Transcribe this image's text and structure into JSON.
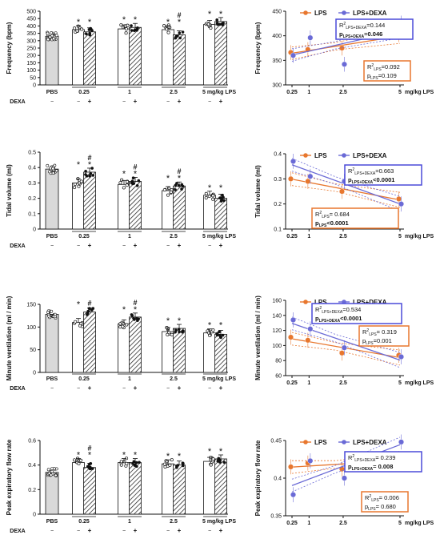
{
  "doses": [
    "0.25",
    "1",
    "2.5",
    "5"
  ],
  "row_labels": {
    "pbs": "PBS",
    "dexa": "DEXA",
    "minus": "−",
    "plus": "+",
    "unit_last": "5 mg/kg LPS",
    "unit_right": "mg/kg LPS"
  },
  "colors": {
    "lps": "#e8772e",
    "lpsdexa": "#6a6ad6",
    "pbs_bar": "#d9d9d9",
    "box_blue": "#4a4ad8",
    "box_orange": "#e8772e"
  },
  "chart_data": [
    {
      "type": "bar",
      "ylabel": "Frequency (bpm)",
      "ylim": [
        0,
        500
      ],
      "yticks": [
        0,
        50,
        100,
        150,
        200,
        250,
        300,
        350,
        400,
        450,
        500
      ],
      "pbs": 330,
      "lps": [
        375,
        380,
        375,
        410
      ],
      "lpsdexa": [
        360,
        390,
        340,
        430
      ],
      "marks_lps": [
        "*",
        "*",
        "*",
        "*"
      ],
      "marks_dexa": [
        "*",
        "*",
        "*#",
        "*"
      ]
    },
    {
      "type": "line",
      "ylabel": "Frequency (bpm)",
      "ylim": [
        300,
        450
      ],
      "yticks": [
        300,
        350,
        400,
        450
      ],
      "xticks": [
        "0.25",
        "1",
        "2.5",
        "5"
      ],
      "legend": [
        "LPS",
        "LPS+DEXA"
      ],
      "series": [
        {
          "name": "LPS",
          "x": [
            0.25,
            1,
            2.5,
            5
          ],
          "y": [
            366,
            372,
            375,
            402
          ]
        },
        {
          "name": "LPS+DEXA",
          "x": [
            0.25,
            1,
            2.5,
            5
          ],
          "y": [
            360,
            396,
            342,
            426
          ]
        }
      ],
      "stats_blue": {
        "r2_prefix": "R",
        "r2_sub": "LPS+DEXA",
        "r2_val": "=0.144",
        "p_prefix": "p",
        "p_sub": "LPS+DEXA",
        "p_val": "=0.046"
      },
      "stats_orange": {
        "r2_prefix": "R",
        "r2_sub": "LPS",
        "r2_val": "=0.092",
        "p_prefix": "p",
        "p_sub": "LPS",
        "p_val": "=0.109"
      }
    },
    {
      "type": "bar",
      "ylabel": "Tidal volume (ml)",
      "ylim": [
        0,
        0.5
      ],
      "yticks": [
        0,
        0.1,
        0.2,
        0.3,
        0.4,
        0.5
      ],
      "pbs": 0.39,
      "lps": [
        0.3,
        0.29,
        0.25,
        0.22
      ],
      "lpsdexa": [
        0.37,
        0.31,
        0.28,
        0.2
      ],
      "marks_lps": [
        "*",
        "*",
        "*",
        "*"
      ],
      "marks_dexa": [
        "*#",
        "*#",
        "*#",
        "*"
      ]
    },
    {
      "type": "line",
      "ylabel": "Tidal volume (ml)",
      "ylim": [
        0.1,
        0.4
      ],
      "yticks": [
        0.1,
        0.2,
        0.3,
        0.4
      ],
      "xticks": [
        "0.25",
        "1",
        "2.5",
        "5"
      ],
      "legend": [
        "LPS",
        "LPS+DEXA"
      ],
      "series": [
        {
          "name": "LPS",
          "x": [
            0.25,
            1,
            2.5,
            5
          ],
          "y": [
            0.3,
            0.29,
            0.25,
            0.22
          ]
        },
        {
          "name": "LPS+DEXA",
          "x": [
            0.25,
            1,
            2.5,
            5
          ],
          "y": [
            0.37,
            0.31,
            0.29,
            0.2
          ]
        }
      ],
      "stats_blue": {
        "r2_prefix": "R",
        "r2_sub": "LPS+DEXA",
        "r2_val": "=0.663",
        "p_prefix": "p",
        "p_sub": "LPS+DEXA",
        "p_val": "<0.0001"
      },
      "stats_orange": {
        "r2_prefix": "R",
        "r2_sub": "LPS",
        "r2_val": "= 0.684",
        "p_prefix": "p",
        "p_sub": "LPS",
        "p_val": "<0.0001"
      }
    },
    {
      "type": "bar",
      "ylabel": "Minute ventilation (ml / min)",
      "ylim": [
        0,
        150
      ],
      "yticks": [
        0,
        50,
        100,
        150
      ],
      "pbs": 128,
      "lps": [
        110,
        107,
        90,
        87
      ],
      "lpsdexa": [
        133,
        122,
        97,
        84
      ],
      "marks_lps": [
        "*",
        "*",
        "*",
        "*"
      ],
      "marks_dexa": [
        "#",
        "*#",
        "*",
        "*"
      ]
    },
    {
      "type": "line",
      "ylabel": "Minute ventilation (ml / min)",
      "ylim": [
        60,
        160
      ],
      "yticks": [
        60,
        80,
        100,
        120,
        140,
        160
      ],
      "xticks": [
        "0.25",
        "1",
        "2.5",
        "5"
      ],
      "legend": [
        "LPS",
        "LPS+DEXA"
      ],
      "series": [
        {
          "name": "LPS",
          "x": [
            0.25,
            1,
            2.5,
            5
          ],
          "y": [
            111,
            107,
            90,
            87
          ]
        },
        {
          "name": "LPS+DEXA",
          "x": [
            0.25,
            1,
            2.5,
            5
          ],
          "y": [
            134,
            122,
            97,
            85
          ]
        }
      ],
      "stats_blue": {
        "r2_prefix": "R",
        "r2_sub": "LPS+DEXA",
        "r2_val": "=0.534",
        "p_prefix": "p",
        "p_sub": "LPS+DEXA",
        "p_val": "<0.0001"
      },
      "stats_orange": {
        "r2_prefix": "R",
        "r2_sub": "LPS",
        "r2_val": "= 0.319",
        "p_prefix": "p",
        "p_sub": "LPS",
        "p_val": "=0.001"
      }
    },
    {
      "type": "bar",
      "ylabel": "Peak expiratory flow rate",
      "ylim": [
        0,
        0.6
      ],
      "yticks": [
        0,
        0.2,
        0.4,
        0.6
      ],
      "pbs": 0.34,
      "lps": [
        0.42,
        0.42,
        0.41,
        0.43
      ],
      "lpsdexa": [
        0.38,
        0.42,
        0.4,
        0.45
      ],
      "marks_lps": [
        "*",
        "*",
        "*",
        "*"
      ],
      "marks_dexa": [
        "*#",
        "*",
        "*",
        "*"
      ]
    },
    {
      "type": "line",
      "ylabel": "Peak expiratory flow rate",
      "ylim": [
        0.35,
        0.45
      ],
      "yticks": [
        0.35,
        0.4,
        0.45
      ],
      "xticks": [
        "0.25",
        "1",
        "2.5",
        "5"
      ],
      "legend": [
        "LPS",
        "LPS+DEXA"
      ],
      "series": [
        {
          "name": "LPS",
          "x": [
            0.25,
            1,
            2.5,
            5
          ],
          "y": [
            0.415,
            0.42,
            0.412,
            0.426
          ]
        },
        {
          "name": "LPS+DEXA",
          "x": [
            0.25,
            1,
            2.5,
            5
          ],
          "y": [
            0.378,
            0.423,
            0.4,
            0.448
          ]
        }
      ],
      "stats_blue": {
        "r2_prefix": "R",
        "r2_sub": "LPS+DEXA",
        "r2_val": "= 0.239",
        "p_prefix": "p",
        "p_sub": "LPS+DEXA",
        "p_val": "= 0.008"
      },
      "stats_orange": {
        "r2_prefix": "R",
        "r2_sub": "LPS",
        "r2_val": "= 0.006",
        "p_prefix": "p",
        "p_sub": "LPS",
        "p_val": "= 0.680"
      }
    }
  ]
}
